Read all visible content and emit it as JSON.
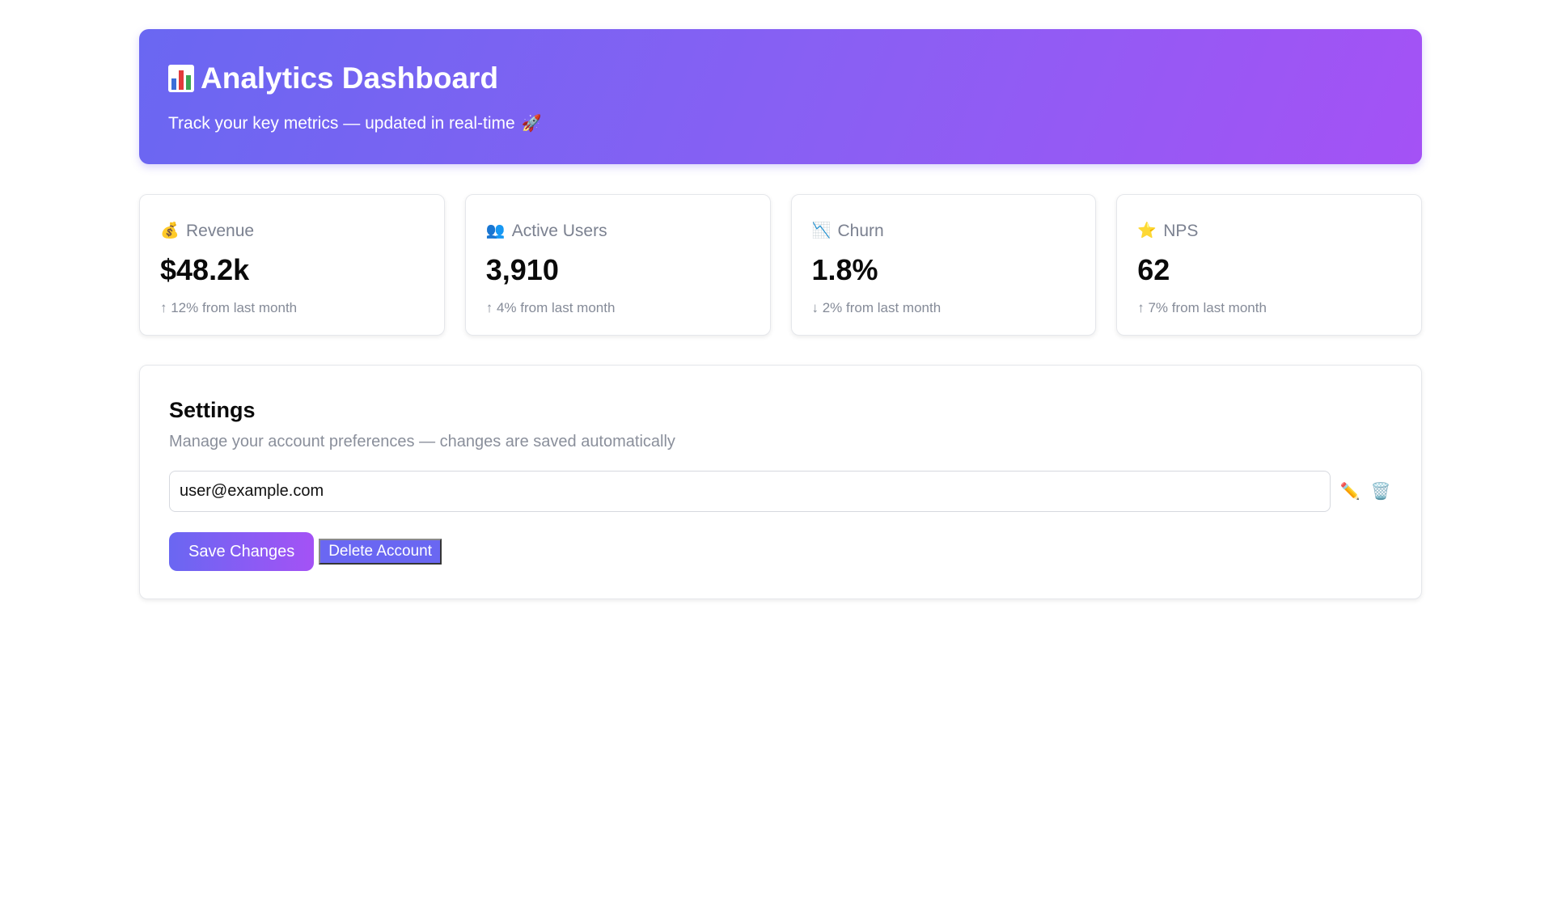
{
  "header": {
    "title": "Analytics Dashboard",
    "title_icon": "bar-chart-icon",
    "subtitle": "Track your key metrics — updated in real-time",
    "subtitle_icon": "rocket-icon",
    "subtitle_icon_glyph": "🚀",
    "gradient_start": "#6a67f2",
    "gradient_end": "#a452f5"
  },
  "metrics": [
    {
      "icon": "money-bag-icon",
      "glyph": "💰",
      "label": "Revenue",
      "value": "$48.2k",
      "change": "↑ 12% from last month"
    },
    {
      "icon": "users-icon",
      "glyph": "👥",
      "label": "Active Users",
      "value": "3,910",
      "change": "↑ 4% from last month"
    },
    {
      "icon": "chart-decreasing-icon",
      "glyph": "📉",
      "label": "Churn",
      "value": "1.8%",
      "change": "↓ 2% from last month"
    },
    {
      "icon": "star-icon",
      "glyph": "⭐",
      "label": "NPS",
      "value": "62",
      "change": "↑ 7% from last month"
    }
  ],
  "settings": {
    "title": "Settings",
    "description": "Manage your account preferences — changes are saved automatically",
    "email_value": "user@example.com",
    "edit_icon": "pencil-icon",
    "edit_glyph": "✏️",
    "delete_icon": "trash-icon",
    "delete_glyph": "🗑️",
    "save_label": "Save Changes",
    "delete_label": "Delete Account",
    "accent_color": "#6a67f2"
  }
}
